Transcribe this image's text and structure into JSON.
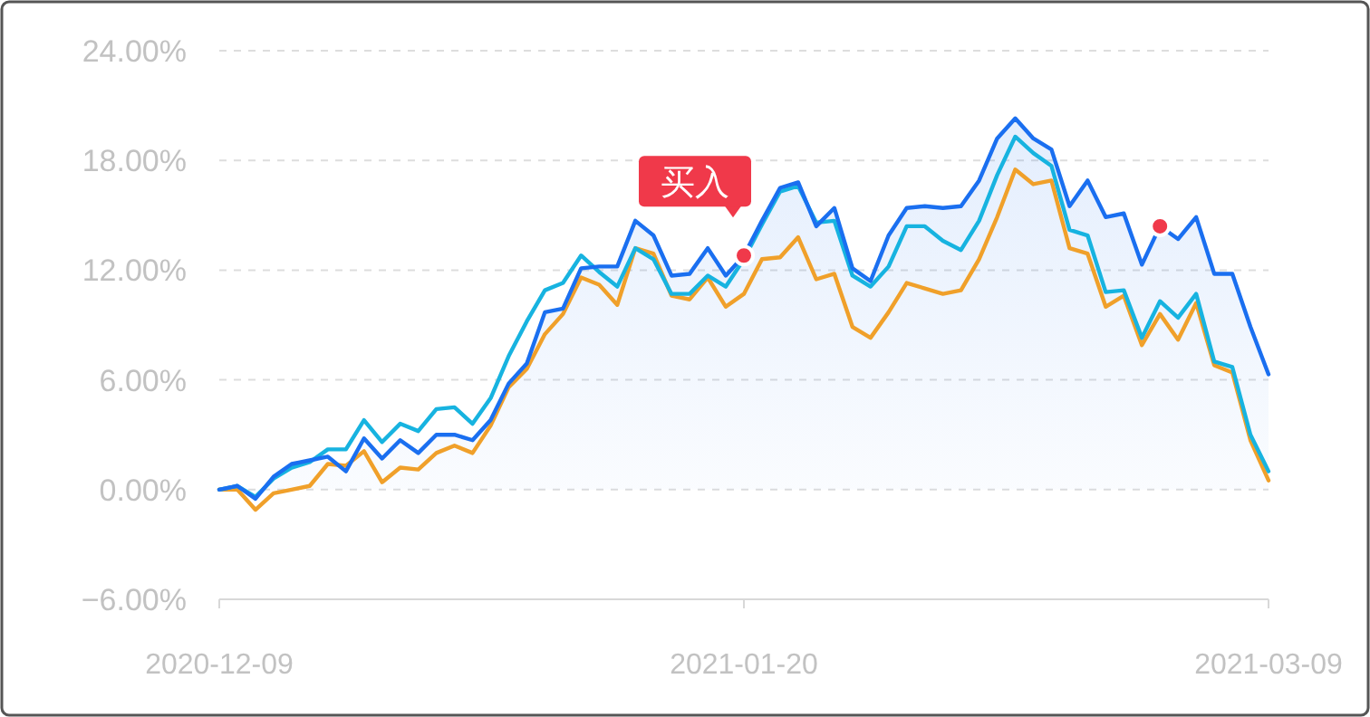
{
  "chart_data": {
    "type": "line",
    "categories": [
      "2020-12-09",
      null,
      null,
      null,
      null,
      null,
      null,
      null,
      null,
      null,
      null,
      null,
      null,
      null,
      null,
      null,
      null,
      null,
      null,
      null,
      null,
      null,
      null,
      null,
      null,
      null,
      null,
      null,
      null,
      "2021-01-20",
      null,
      null,
      null,
      null,
      null,
      null,
      null,
      null,
      null,
      null,
      null,
      null,
      null,
      null,
      null,
      null,
      null,
      null,
      null,
      null,
      null,
      null,
      null,
      null,
      null,
      null,
      null,
      null,
      "2021-03-09"
    ],
    "ylim": [
      -6,
      24
    ],
    "yticks": [
      {
        "value": -6,
        "label": "−6.00%"
      },
      {
        "value": 0,
        "label": "0.00%"
      },
      {
        "value": 6,
        "label": "6.00%"
      },
      {
        "value": 12,
        "label": "12.00%"
      },
      {
        "value": 18,
        "label": "18.00%"
      },
      {
        "value": 24,
        "label": "24.00%"
      }
    ],
    "grid": "y",
    "series": [
      {
        "color": "#f0a02a",
        "values": [
          0,
          0,
          -1.1,
          -0.2,
          0.0,
          0.2,
          1.4,
          1.3,
          2.1,
          0.4,
          1.2,
          1.1,
          2.0,
          2.4,
          2.0,
          3.5,
          5.6,
          6.6,
          8.5,
          9.6,
          11.6,
          11.2,
          10.1,
          13.2,
          12.9,
          10.6,
          10.4,
          11.6,
          10.0,
          10.7,
          12.6,
          12.7,
          13.8,
          11.5,
          11.8,
          8.9,
          8.3,
          9.7,
          11.3,
          11.0,
          10.7,
          10.9,
          12.6,
          14.9,
          17.5,
          16.7,
          16.9,
          13.2,
          12.9,
          10.0,
          10.6,
          7.9,
          9.6,
          8.2,
          10.2,
          6.8,
          6.4,
          2.7,
          0.5
        ]
      },
      {
        "color": "#17b3e0",
        "values": [
          0,
          0.2,
          -0.4,
          0.6,
          1.2,
          1.5,
          2.2,
          2.2,
          3.8,
          2.6,
          3.6,
          3.2,
          4.4,
          4.5,
          3.6,
          5.0,
          7.3,
          9.2,
          10.9,
          11.3,
          12.8,
          11.9,
          11.1,
          13.2,
          12.6,
          10.7,
          10.7,
          11.7,
          11.1,
          12.6,
          14.5,
          16.3,
          16.6,
          14.6,
          14.7,
          11.7,
          11.1,
          12.2,
          14.4,
          14.4,
          13.6,
          13.1,
          14.7,
          17.2,
          19.3,
          18.4,
          17.7,
          14.2,
          13.9,
          10.8,
          10.9,
          8.3,
          10.3,
          9.4,
          10.7,
          7.0,
          6.7,
          3.0,
          1.0
        ]
      },
      {
        "type": "area",
        "color": "#1a6ff0",
        "values": [
          0,
          0.2,
          -0.5,
          0.7,
          1.4,
          1.6,
          1.8,
          1.0,
          2.8,
          1.7,
          2.7,
          2.0,
          3.0,
          3.0,
          2.7,
          3.8,
          5.8,
          6.9,
          9.7,
          9.9,
          12.1,
          12.2,
          12.2,
          14.7,
          13.9,
          11.7,
          11.8,
          13.2,
          11.7,
          12.8,
          14.7,
          16.5,
          16.8,
          14.4,
          15.4,
          12.1,
          11.4,
          13.9,
          15.4,
          15.5,
          15.4,
          15.5,
          16.9,
          19.2,
          20.3,
          19.2,
          18.6,
          15.5,
          16.9,
          14.9,
          15.1,
          12.3,
          14.4,
          13.7,
          14.9,
          11.8,
          11.8,
          8.9,
          6.3
        ]
      },
      {
        "type": "scatter",
        "color": "#f0394a",
        "values": [
          null,
          null,
          null,
          null,
          null,
          null,
          null,
          null,
          null,
          null,
          null,
          null,
          null,
          null,
          null,
          null,
          null,
          null,
          null,
          null,
          null,
          null,
          null,
          null,
          null,
          null,
          null,
          null,
          null,
          12.8,
          null,
          null,
          null,
          null,
          null,
          null,
          null,
          null,
          null,
          null,
          null,
          null,
          null,
          null,
          null,
          null,
          null,
          null,
          null,
          null,
          null,
          null,
          14.4,
          null,
          null,
          null,
          null,
          null,
          null
        ]
      }
    ],
    "annotations": [
      {
        "text": "买入",
        "x": "2021-01-20",
        "y": 12.8
      }
    ]
  }
}
